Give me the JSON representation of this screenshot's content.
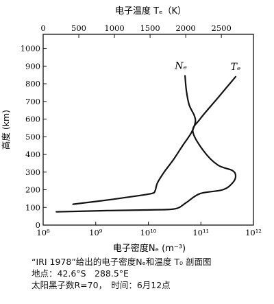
{
  "chart_data": {
    "type": "line",
    "top_axis": {
      "label": "电子温度 Tₑ（K）",
      "ticks": [
        0,
        500,
        1000,
        1500,
        2000,
        2500
      ],
      "range": [
        0,
        2950
      ]
    },
    "bottom_axis": {
      "label": "电子密度Nₑ (m⁻³)",
      "scale": "log",
      "ticks": [
        {
          "value": 100000000.0,
          "label": "10⁸"
        },
        {
          "value": 1000000000.0,
          "label": "10⁹"
        },
        {
          "value": 10000000000.0,
          "label": "10¹⁰"
        },
        {
          "value": 100000000000.0,
          "label": "10¹¹"
        },
        {
          "value": 1000000000000.0,
          "label": "10¹²"
        }
      ],
      "range": [
        100000000.0,
        1000000000000.0
      ]
    },
    "y_axis": {
      "label": "高度 (km)",
      "ticks": [
        0,
        100,
        200,
        300,
        400,
        500,
        600,
        700,
        800,
        900,
        1000
      ],
      "range": [
        0,
        1080
      ]
    },
    "series": [
      {
        "name": "Nₑ",
        "axis": "bottom",
        "points": [
          [
            370000000.0,
            118
          ],
          [
            2000000000.0,
            145
          ],
          [
            7000000000.0,
            168
          ],
          [
            12000000000.0,
            180
          ],
          [
            13500000000.0,
            195
          ],
          [
            15000000000.0,
            240
          ],
          [
            20000000000.0,
            300
          ],
          [
            30000000000.0,
            370
          ],
          [
            45000000000.0,
            450
          ],
          [
            65000000000.0,
            520
          ],
          [
            78000000000.0,
            580
          ],
          [
            75000000000.0,
            620
          ],
          [
            60000000000.0,
            680
          ],
          [
            53000000000.0,
            760
          ],
          [
            50000000000.0,
            845
          ]
        ]
      },
      {
        "name": "Tₑ",
        "axis": "top",
        "points": [
          [
            185,
            75
          ],
          [
            900,
            82
          ],
          [
            1500,
            86
          ],
          [
            1850,
            92
          ],
          [
            2000,
            125
          ],
          [
            2200,
            178
          ],
          [
            2520,
            200
          ],
          [
            2660,
            240
          ],
          [
            2700,
            280
          ],
          [
            2650,
            310
          ],
          [
            2450,
            340
          ],
          [
            2250,
            420
          ],
          [
            2100,
            530
          ],
          [
            2200,
            600
          ],
          [
            2450,
            720
          ],
          [
            2700,
            840
          ]
        ]
      }
    ],
    "caption": [
      "“IRI 1978”给出的电子密度Nₑ和温度 T₀ 剖面图",
      "地点：42.6°S　288.5°E",
      "太阳黑子数R=70，　时间：6月12点"
    ]
  }
}
